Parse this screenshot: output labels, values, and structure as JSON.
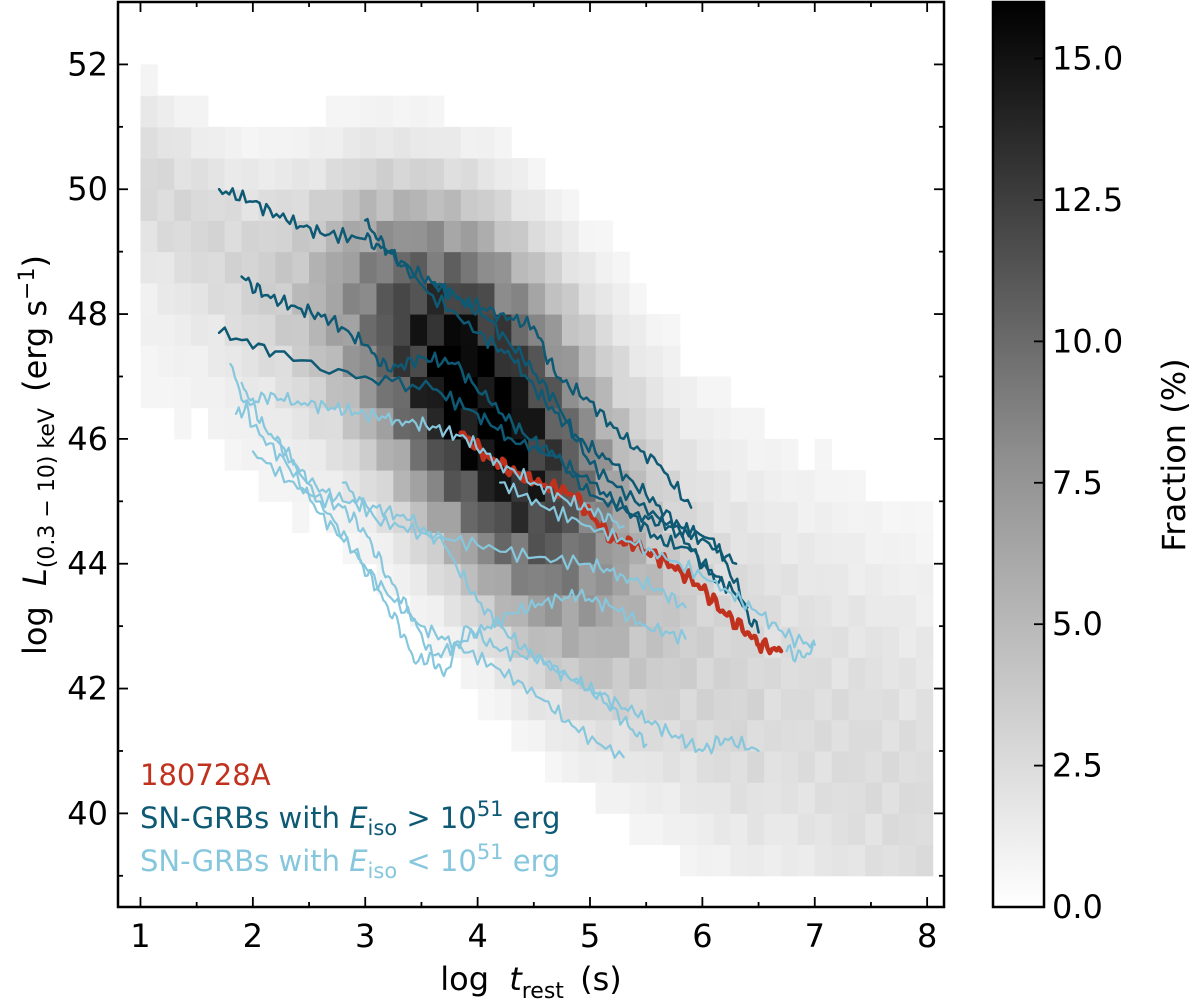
{
  "chart_data": {
    "type": "heatmap",
    "title": "",
    "xlabel": {
      "prefix": "log",
      "var": "t",
      "sub": "rest",
      "unit": "(s)"
    },
    "ylabel": {
      "prefix": "log",
      "var": "L",
      "sub": "(0.3 − 10) keV",
      "unit": "(erg s",
      "unit_sup": "−1",
      "unit_end": ")"
    },
    "xlim": [
      0.8,
      8.15
    ],
    "ylim": [
      38.5,
      53
    ],
    "xticks": [
      1,
      2,
      3,
      4,
      5,
      6,
      7,
      8
    ],
    "yticks": [
      40,
      42,
      44,
      46,
      48,
      50,
      52
    ],
    "heatmap": {
      "bin_width_x": 0.15,
      "bin_height_y": 0.5,
      "colormap": "grey-scale (0 = white, max = black)",
      "ridge": [
        [
          1.3,
          49.9
        ],
        [
          2.0,
          48.8
        ],
        [
          3.0,
          48.1
        ],
        [
          4.0,
          46.7
        ],
        [
          5.0,
          45.0
        ],
        [
          6.0,
          43.4
        ],
        [
          7.0,
          41.9
        ],
        [
          8.0,
          40.3
        ]
      ],
      "peak_fraction": 16
    },
    "colorbar": {
      "label": "Fraction (%)",
      "range": [
        0,
        16
      ],
      "ticks": [
        "0.0",
        "2.5",
        "5.0",
        "7.5",
        "10.0",
        "12.5",
        "15.0"
      ],
      "tick_values": [
        0,
        2.5,
        5,
        7.5,
        10,
        12.5,
        15
      ]
    },
    "series": [
      {
        "name": "180728A",
        "color": "#c0321e",
        "width": 4.5,
        "points": [
          [
            3.85,
            46.1
          ],
          [
            4.1,
            45.7
          ],
          [
            4.3,
            45.5
          ],
          [
            4.5,
            45.3
          ],
          [
            4.7,
            45.2
          ],
          [
            4.85,
            45.1
          ],
          [
            5.0,
            44.8
          ],
          [
            5.2,
            44.4
          ],
          [
            5.4,
            44.3
          ],
          [
            5.6,
            44.1
          ],
          [
            5.8,
            43.9
          ],
          [
            6.0,
            43.6
          ],
          [
            6.2,
            43.2
          ],
          [
            6.4,
            42.9
          ],
          [
            6.5,
            42.7
          ],
          [
            6.7,
            42.6
          ]
        ]
      },
      {
        "name": "SN-GRBs with E_iso > 10^51 erg (a)",
        "color": "#0e5974",
        "width": 2.5,
        "points": [
          [
            1.7,
            50.0
          ],
          [
            2.0,
            49.8
          ],
          [
            2.3,
            49.5
          ],
          [
            2.6,
            49.3
          ],
          [
            3.0,
            49.2
          ],
          [
            3.2,
            49.0
          ],
          [
            3.5,
            48.6
          ],
          [
            3.8,
            48.3
          ],
          [
            4.1,
            47.9
          ],
          [
            4.4,
            47.3
          ],
          [
            4.7,
            46.6
          ],
          [
            5.0,
            45.6
          ],
          [
            5.4,
            45.0
          ],
          [
            5.8,
            44.5
          ],
          [
            6.0,
            44.0
          ],
          [
            6.3,
            43.5
          ],
          [
            6.5,
            42.9
          ]
        ]
      },
      {
        "name": "SN-GRBs with E_iso > 10^51 erg (b)",
        "color": "#0e5974",
        "width": 2.5,
        "points": [
          [
            1.9,
            48.6
          ],
          [
            2.1,
            48.3
          ],
          [
            2.4,
            48.1
          ],
          [
            2.7,
            47.9
          ],
          [
            3.0,
            47.5
          ],
          [
            3.2,
            47.1
          ],
          [
            3.5,
            47.3
          ],
          [
            3.8,
            47.2
          ],
          [
            4.1,
            46.6
          ],
          [
            4.4,
            46.1
          ],
          [
            4.7,
            45.7
          ],
          [
            5.0,
            45.3
          ],
          [
            5.3,
            44.9
          ],
          [
            5.6,
            44.4
          ],
          [
            5.9,
            44.2
          ],
          [
            6.2,
            43.6
          ]
        ]
      },
      {
        "name": "SN-GRBs with E_iso > 10^51 erg (c)",
        "color": "#0e5974",
        "width": 2.5,
        "points": [
          [
            1.7,
            47.7
          ],
          [
            2.2,
            47.4
          ],
          [
            3.0,
            47.0
          ],
          [
            3.6,
            46.8
          ],
          [
            4.0,
            46.4
          ],
          [
            4.3,
            46.0
          ],
          [
            4.7,
            45.7
          ],
          [
            5.0,
            45.1
          ],
          [
            5.4,
            44.8
          ],
          [
            5.7,
            44.6
          ],
          [
            6.1,
            44.4
          ],
          [
            6.4,
            43.3
          ]
        ]
      },
      {
        "name": "SN-GRBs with E_iso > 10^51 erg (d)",
        "color": "#0e5974",
        "width": 2.5,
        "points": [
          [
            3.6,
            48.5
          ],
          [
            3.9,
            48.2
          ],
          [
            4.2,
            48.0
          ],
          [
            4.5,
            47.8
          ],
          [
            4.7,
            47.0
          ],
          [
            5.0,
            46.6
          ],
          [
            5.3,
            46.0
          ],
          [
            5.6,
            45.6
          ],
          [
            5.9,
            44.9
          ]
        ]
      },
      {
        "name": "SN-GRBs with E_iso > 10^51 erg (e)",
        "color": "#0e5974",
        "width": 2.5,
        "points": [
          [
            3.0,
            49.5
          ],
          [
            3.2,
            49.0
          ],
          [
            3.6,
            48.3
          ],
          [
            4.0,
            47.7
          ],
          [
            4.3,
            47.3
          ],
          [
            4.6,
            46.6
          ],
          [
            4.9,
            46.0
          ],
          [
            5.2,
            45.6
          ],
          [
            5.5,
            45.1
          ],
          [
            5.8,
            44.6
          ],
          [
            6.0,
            44.4
          ],
          [
            6.3,
            44.0
          ]
        ]
      },
      {
        "name": "SN-GRBs with E_iso < 10^51 erg (a)",
        "color": "#86c7dd",
        "width": 2.2,
        "points": [
          [
            1.8,
            47.2
          ],
          [
            2.0,
            46.2
          ],
          [
            2.3,
            45.6
          ],
          [
            2.6,
            44.8
          ],
          [
            2.9,
            44.2
          ],
          [
            3.2,
            43.5
          ],
          [
            3.5,
            43.0
          ],
          [
            3.8,
            42.7
          ],
          [
            4.2,
            42.3
          ],
          [
            4.6,
            41.8
          ],
          [
            4.9,
            41.3
          ],
          [
            5.3,
            40.9
          ]
        ]
      },
      {
        "name": "SN-GRBs with E_iso < 10^51 erg (b)",
        "color": "#86c7dd",
        "width": 2.2,
        "points": [
          [
            1.85,
            46.4
          ],
          [
            2.1,
            46.7
          ],
          [
            2.4,
            46.6
          ],
          [
            2.7,
            46.5
          ],
          [
            3.0,
            46.4
          ],
          [
            3.3,
            46.3
          ],
          [
            3.6,
            46.2
          ],
          [
            3.9,
            46.0
          ],
          [
            4.2,
            45.6
          ],
          [
            4.5,
            45.3
          ],
          [
            4.8,
            45.0
          ],
          [
            5.1,
            44.8
          ],
          [
            5.3,
            44.6
          ]
        ]
      },
      {
        "name": "SN-GRBs with E_iso < 10^51 erg (c)",
        "color": "#86c7dd",
        "width": 2.2,
        "points": [
          [
            1.9,
            46.9
          ],
          [
            2.1,
            46.2
          ],
          [
            2.3,
            45.8
          ],
          [
            2.5,
            45.3
          ],
          [
            2.8,
            45.0
          ],
          [
            3.1,
            44.9
          ],
          [
            3.4,
            44.7
          ],
          [
            3.7,
            44.3
          ],
          [
            4.0,
            43.4
          ],
          [
            4.3,
            42.8
          ],
          [
            4.6,
            42.4
          ],
          [
            5.0,
            42.0
          ],
          [
            5.3,
            41.5
          ],
          [
            5.5,
            41.1
          ]
        ]
      },
      {
        "name": "SN-GRBs with E_iso < 10^51 erg (d)",
        "color": "#86c7dd",
        "width": 2.2,
        "points": [
          [
            2.0,
            45.8
          ],
          [
            2.4,
            45.2
          ],
          [
            2.8,
            44.9
          ],
          [
            3.0,
            44.5
          ],
          [
            3.2,
            43.8
          ],
          [
            3.4,
            43.2
          ],
          [
            3.6,
            42.5
          ],
          [
            3.7,
            42.2
          ],
          [
            3.9,
            43.0
          ],
          [
            4.2,
            42.6
          ],
          [
            4.5,
            42.5
          ],
          [
            4.8,
            42.2
          ],
          [
            5.1,
            41.9
          ],
          [
            5.4,
            41.6
          ],
          [
            5.7,
            41.3
          ],
          [
            6.0,
            41.0
          ],
          [
            6.2,
            41.2
          ],
          [
            6.5,
            41.0
          ]
        ]
      },
      {
        "name": "SN-GRBs with E_iso < 10^51 erg (e)",
        "color": "#86c7dd",
        "width": 2.2,
        "points": [
          [
            2.2,
            46.0
          ],
          [
            2.6,
            45.0
          ],
          [
            2.9,
            44.2
          ],
          [
            3.1,
            43.6
          ],
          [
            3.3,
            43.0
          ],
          [
            3.45,
            42.4
          ],
          [
            3.7,
            42.6
          ],
          [
            4.0,
            42.9
          ],
          [
            4.3,
            43.2
          ],
          [
            4.6,
            43.4
          ],
          [
            4.9,
            43.5
          ],
          [
            5.2,
            43.3
          ],
          [
            5.5,
            43.0
          ],
          [
            5.85,
            42.8
          ]
        ]
      },
      {
        "name": "SN-GRBs with E_iso < 10^51 erg (f)",
        "color": "#86c7dd",
        "width": 2.2,
        "points": [
          [
            2.8,
            45.3
          ],
          [
            3.1,
            44.7
          ],
          [
            3.5,
            44.5
          ],
          [
            4.0,
            44.3
          ],
          [
            4.5,
            44.1
          ],
          [
            5.0,
            44.0
          ],
          [
            5.3,
            43.8
          ],
          [
            5.6,
            43.6
          ],
          [
            5.85,
            43.3
          ]
        ]
      },
      {
        "name": "SN-GRBs with E_iso < 10^51 erg (g)",
        "color": "#86c7dd",
        "width": 2.2,
        "points": [
          [
            4.2,
            45.3
          ],
          [
            4.6,
            44.9
          ],
          [
            5.0,
            44.6
          ],
          [
            5.4,
            44.3
          ],
          [
            5.8,
            44.0
          ],
          [
            6.2,
            43.6
          ],
          [
            6.5,
            43.2
          ],
          [
            6.8,
            42.8
          ],
          [
            7.0,
            42.7
          ],
          [
            6.9,
            42.5
          ],
          [
            6.75,
            42.6
          ]
        ]
      }
    ],
    "legend": {
      "placement": "lower-left",
      "entries": [
        {
          "text": "180728A",
          "color": "#c0321e"
        },
        {
          "text_before": "SN-GRBs with ",
          "var": "E",
          "sub": "iso",
          "op": " > 10",
          "sup": "51",
          "text_after": " erg",
          "color": "#0e5974"
        },
        {
          "text_before": "SN-GRBs with ",
          "var": "E",
          "sub": "iso",
          "op": " < 10",
          "sup": "51",
          "text_after": " erg",
          "color": "#86c7dd"
        }
      ]
    }
  }
}
